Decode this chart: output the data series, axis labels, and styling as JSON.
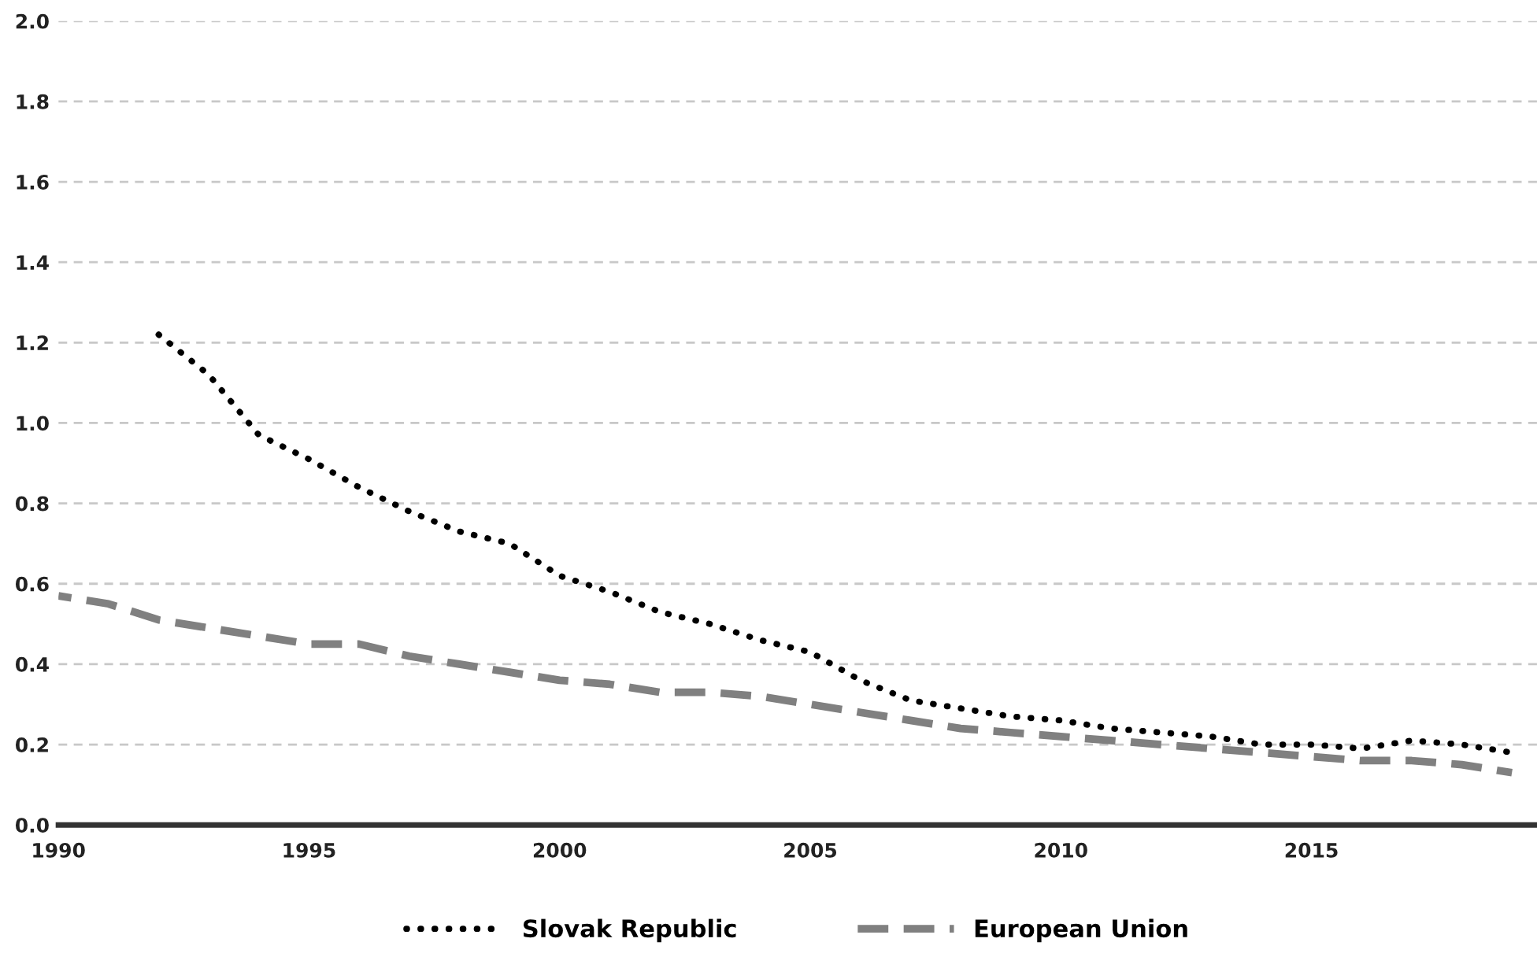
{
  "chart_data": {
    "type": "line",
    "xlim": [
      1990,
      2019.5
    ],
    "xticks": [
      1990,
      1995,
      2000,
      2005,
      2010,
      2015
    ],
    "ylim": [
      0,
      2.0
    ],
    "yticks": [
      {
        "value": 0,
        "label": "0.0"
      },
      {
        "value": 0.2,
        "label": "0.2"
      },
      {
        "value": 0.4,
        "label": "0.4"
      },
      {
        "value": 0.6,
        "label": "0.6"
      },
      {
        "value": 0.8,
        "label": "0.8"
      },
      {
        "value": 1.0,
        "label": "1.0"
      },
      {
        "value": 1.2,
        "label": "1.2"
      },
      {
        "value": 1.4,
        "label": "1.4"
      },
      {
        "value": 1.6,
        "label": "1.6"
      },
      {
        "value": 1.8,
        "label": "1.8"
      },
      {
        "value": 2.0,
        "label": "2.0"
      }
    ],
    "grid": "y",
    "legend": "bottom",
    "series": [
      {
        "name": "Slovak Republic",
        "color": "#000000",
        "line_style": "dotted",
        "x": [
          1992,
          1993,
          1994,
          1995,
          1996,
          1997,
          1998,
          1999,
          2000,
          2001,
          2002,
          2003,
          2004,
          2005,
          2006,
          2007,
          2008,
          2009,
          2010,
          2011,
          2012,
          2013,
          2014,
          2015,
          2016,
          2017,
          2018,
          2019
        ],
        "values": [
          1.22,
          1.12,
          0.97,
          0.91,
          0.84,
          0.78,
          0.73,
          0.7,
          0.62,
          0.58,
          0.53,
          0.5,
          0.46,
          0.43,
          0.36,
          0.31,
          0.29,
          0.27,
          0.26,
          0.24,
          0.23,
          0.22,
          0.2,
          0.2,
          0.19,
          0.21,
          0.2,
          0.18
        ]
      },
      {
        "name": "European Union",
        "color": "#808080",
        "line_style": "dashed",
        "x": [
          1990,
          1991,
          1992,
          1993,
          1994,
          1995,
          1996,
          1997,
          1998,
          1999,
          2000,
          2001,
          2002,
          2003,
          2004,
          2005,
          2006,
          2007,
          2008,
          2009,
          2010,
          2011,
          2012,
          2013,
          2014,
          2015,
          2016,
          2017,
          2018,
          2019
        ],
        "values": [
          0.57,
          0.55,
          0.51,
          0.49,
          0.47,
          0.45,
          0.45,
          0.42,
          0.4,
          0.38,
          0.36,
          0.35,
          0.33,
          0.33,
          0.32,
          0.3,
          0.28,
          0.26,
          0.24,
          0.23,
          0.22,
          0.21,
          0.2,
          0.19,
          0.18,
          0.17,
          0.16,
          0.16,
          0.15,
          0.13
        ]
      }
    ]
  }
}
